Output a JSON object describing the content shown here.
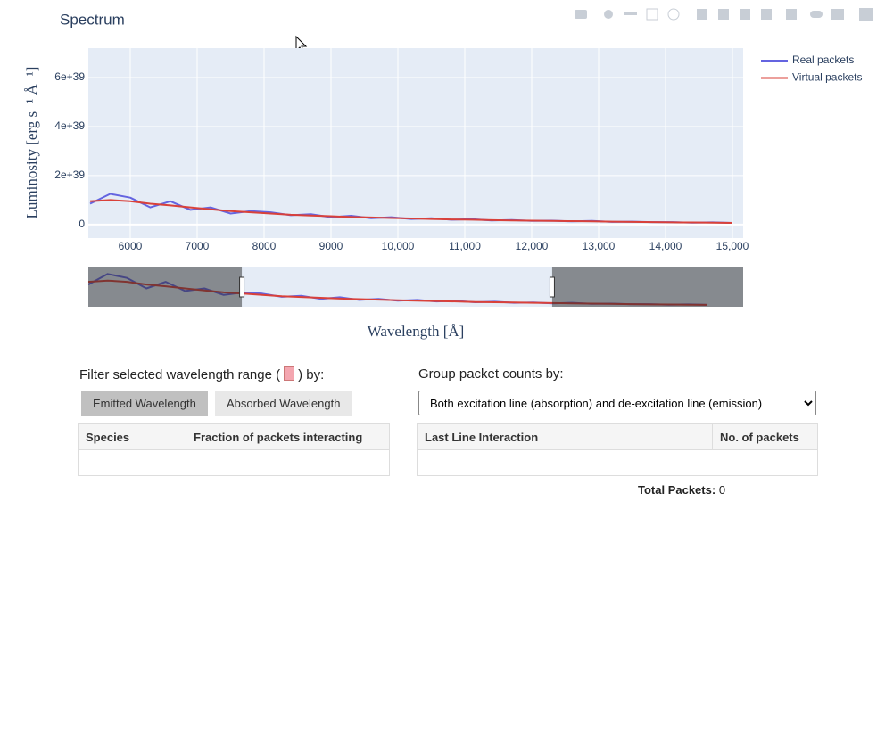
{
  "chart_data": {
    "type": "line",
    "title": "Spectrum",
    "x_label": "Wavelength [Å]",
    "y_label": "Luminosity [erg s⁻¹ Å⁻¹]",
    "x": [
      5400,
      5700,
      6000,
      6300,
      6600,
      6900,
      7200,
      7500,
      7800,
      8100,
      8400,
      8700,
      9000,
      9300,
      9600,
      9900,
      10200,
      10500,
      10800,
      11100,
      11400,
      11700,
      12000,
      12300,
      12600,
      12900,
      13200,
      13500,
      13800,
      14100,
      14400,
      14700,
      15000
    ],
    "series": [
      {
        "name": "Real packets",
        "color": "#6464e0",
        "values": [
          8.5e+38,
          1.25e+39,
          1.1e+39,
          7e+38,
          9.5e+38,
          6e+38,
          7e+38,
          4.5e+38,
          5.5e+38,
          5e+38,
          3.8e+38,
          4.2e+38,
          3e+38,
          3.6e+38,
          2.6e+38,
          3e+38,
          2.3e+38,
          2.6e+38,
          2e+38,
          2.2e+38,
          1.7e+38,
          1.9e+38,
          1.5e+38,
          1.6e+38,
          1.3e+38,
          1.5e+38,
          1.1e+38,
          1.2e+38,
          1e+38,
          1e+38,
          8e+37,
          9e+37,
          7e+37
        ]
      },
      {
        "name": "Virtual packets",
        "color": "#d9413a",
        "values": [
          9.5e+38,
          1e+39,
          9.5e+38,
          8.5e+38,
          7.8e+38,
          7e+38,
          6.2e+38,
          5.5e+38,
          5e+38,
          4.5e+38,
          4e+38,
          3.7e+38,
          3.4e+38,
          3.1e+38,
          2.9e+38,
          2.7e+38,
          2.5e+38,
          2.3e+38,
          2.1e+38,
          2e+38,
          1.8e+38,
          1.7e+38,
          1.6e+38,
          1.5e+38,
          1.4e+38,
          1.3e+38,
          1.2e+38,
          1.1e+38,
          1e+38,
          9e+37,
          8.5e+37,
          8e+37,
          7e+37
        ]
      }
    ],
    "xlim": [
      5373,
      15160
    ],
    "xticks": [
      6000,
      7000,
      8000,
      9000,
      {
        "value": 10000,
        "label": "10,000"
      },
      {
        "value": 11000,
        "label": "11,000"
      },
      {
        "value": 12000,
        "label": "12,000"
      },
      {
        "value": 13000,
        "label": "13,000"
      },
      {
        "value": 14000,
        "label": "14,000"
      },
      {
        "value": 15000,
        "label": "15,000"
      }
    ],
    "ylim": [
      -5.5e+38,
      7.2e+39
    ],
    "yticks": [
      0,
      {
        "value": 2e+39,
        "label": "2e+39"
      },
      {
        "value": 4e+39,
        "label": "4e+39"
      },
      {
        "value": 6e+39,
        "label": "6e+39"
      }
    ],
    "grid": true,
    "legend": "top-right",
    "range_slider": {
      "xlim": [
        5400,
        15553
      ],
      "ylim": [
        0,
        1.5e+39
      ],
      "window": [
        7780,
        12592
      ]
    }
  },
  "filter": {
    "label_before": "Filter selected wavelength range (",
    "label_after": ") by:",
    "buttons": [
      "Emitted Wavelength",
      "Absorbed Wavelength"
    ],
    "table_headers": [
      "Species",
      "Fraction of packets interacting"
    ]
  },
  "group": {
    "label": "Group packet counts by:",
    "selected": "Both excitation line (absorption) and de-excitation line (emission)",
    "table_headers": [
      "Last Line Interaction",
      "No. of packets"
    ],
    "total_label": "Total Packets:",
    "total_value": "0"
  }
}
